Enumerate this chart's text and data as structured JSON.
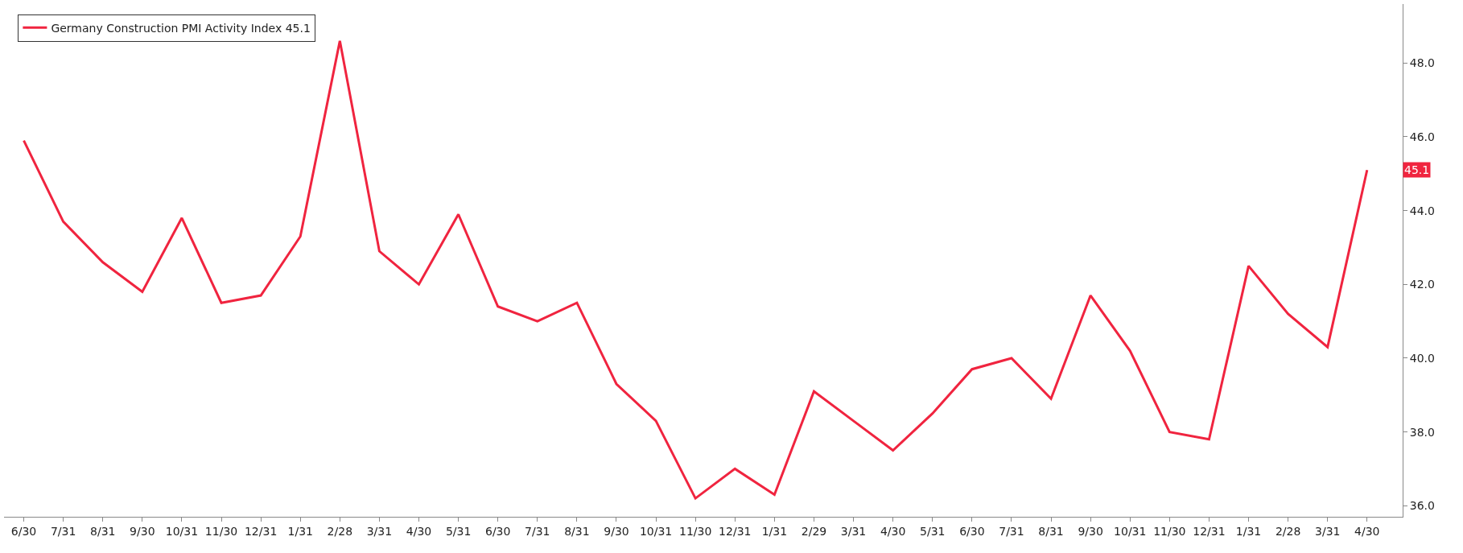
{
  "chart_data": {
    "type": "line",
    "categories": [
      "6/30",
      "7/31",
      "8/31",
      "9/30",
      "10/31",
      "11/30",
      "12/31",
      "1/31",
      "2/28",
      "3/31",
      "4/30",
      "5/31",
      "6/30",
      "7/31",
      "8/31",
      "9/30",
      "10/31",
      "11/30",
      "12/31",
      "1/31",
      "2/29",
      "3/31",
      "4/30",
      "5/31",
      "6/30",
      "7/31",
      "8/31",
      "9/30",
      "10/31",
      "11/30",
      "12/31",
      "1/31",
      "2/28",
      "3/31",
      "4/30"
    ],
    "series": [
      {
        "name": "Germany Construction PMI Activity Index 45.1",
        "color": "#f0243f",
        "values": [
          45.9,
          43.7,
          42.6,
          41.8,
          43.8,
          41.5,
          41.7,
          43.3,
          48.6,
          42.9,
          42.0,
          43.9,
          41.4,
          41.0,
          41.5,
          39.3,
          38.3,
          36.2,
          37.0,
          36.3,
          39.1,
          38.3,
          37.5,
          38.5,
          39.7,
          40.0,
          38.9,
          41.7,
          40.2,
          38.0,
          37.8,
          42.5,
          41.2,
          40.3,
          45.1
        ]
      }
    ],
    "ylim": [
      35.7,
      49.6
    ],
    "yticks": [
      {
        "value": 36,
        "label": "36.0"
      },
      {
        "value": 38,
        "label": "38.0"
      },
      {
        "value": 40,
        "label": "40.0"
      },
      {
        "value": 42,
        "label": "42.0"
      },
      {
        "value": 44,
        "label": "44.0"
      },
      {
        "value": 46,
        "label": "46.0"
      },
      {
        "value": 48,
        "label": "48.0"
      }
    ],
    "annotations": [
      {
        "text": "45.1",
        "y": 45.1
      }
    ],
    "legend": "top left",
    "marker": "none",
    "line_style": "solid"
  }
}
